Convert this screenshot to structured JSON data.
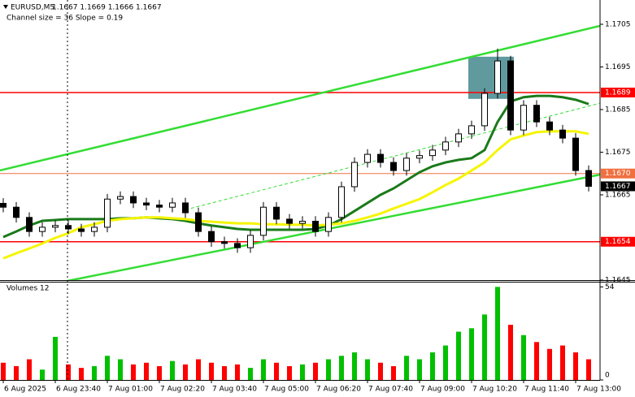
{
  "chart_data": [
    {
      "type": "candlestick",
      "title": "EURUSD,M5",
      "subtitle": "1.1667 1.1669 1.1666 1.1667",
      "annotation": "Channel size = 36 Slope = 0.19",
      "categories": [
        "6 Aug 2025",
        null,
        null,
        null,
        "6 Aug 23:40",
        null,
        null,
        null,
        "7 Aug 01:00",
        null,
        null,
        null,
        "7 Aug 02:20",
        null,
        null,
        null,
        "7 Aug 03:40",
        null,
        null,
        null,
        "7 Aug 05:00",
        null,
        null,
        null,
        "7 Aug 06:20",
        null,
        null,
        null,
        "7 Aug 07:40",
        null,
        null,
        null,
        "7 Aug 09:00",
        null,
        null,
        null,
        "7 Aug 10:20",
        null,
        null,
        null,
        "7 Aug 11:40",
        null,
        null,
        null,
        "7 Aug 13:00",
        null
      ],
      "open": [
        1.1663,
        1.16621,
        1.16597,
        1.16564,
        1.16574,
        1.16578,
        1.1657,
        1.16564,
        1.16574,
        1.1664,
        1.16646,
        1.16631,
        1.16626,
        1.16621,
        1.16631,
        1.16608,
        1.16564,
        1.1654,
        1.16536,
        1.16526,
        1.16555,
        1.16621,
        1.16593,
        1.16583,
        1.16588,
        1.16564,
        1.16597,
        1.16669,
        1.16726,
        1.16745,
        1.16726,
        1.16707,
        1.16736,
        1.16742,
        1.16755,
        1.16774,
        1.16793,
        1.16812,
        1.16888,
        1.16964,
        1.16802,
        1.1686,
        1.16821,
        1.16802,
        1.16783,
        1.16707
      ],
      "high": [
        1.16642,
        1.16633,
        1.16609,
        1.16586,
        1.1659,
        1.1659,
        1.16582,
        1.16586,
        1.16652,
        1.16658,
        1.16658,
        1.16643,
        1.16638,
        1.16643,
        1.16643,
        1.1662,
        1.16576,
        1.16552,
        1.16548,
        1.16567,
        1.16633,
        1.16633,
        1.16605,
        1.166,
        1.166,
        1.16609,
        1.16681,
        1.16738,
        1.16757,
        1.16757,
        1.16738,
        1.16748,
        1.16754,
        1.16767,
        1.16786,
        1.16805,
        1.16824,
        1.169,
        1.16993,
        1.16976,
        1.16872,
        1.16872,
        1.16833,
        1.16814,
        1.16795,
        1.16719
      ],
      "low": [
        1.16609,
        1.16585,
        1.16552,
        1.16552,
        1.16562,
        1.16558,
        1.16552,
        1.16552,
        1.16562,
        1.16628,
        1.16619,
        1.16614,
        1.16609,
        1.16609,
        1.16596,
        1.16552,
        1.16528,
        1.16524,
        1.16514,
        1.16514,
        1.16543,
        1.16581,
        1.16571,
        1.16571,
        1.16552,
        1.16552,
        1.16585,
        1.16657,
        1.16714,
        1.16714,
        1.16695,
        1.16695,
        1.16724,
        1.1673,
        1.16743,
        1.16762,
        1.16781,
        1.168,
        1.16876,
        1.1679,
        1.1679,
        1.16809,
        1.1679,
        1.16771,
        1.16695,
        1.16658
      ],
      "close": [
        1.16621,
        1.16597,
        1.16564,
        1.16574,
        1.16578,
        1.1657,
        1.16564,
        1.16574,
        1.1664,
        1.16646,
        1.16631,
        1.16626,
        1.16621,
        1.16631,
        1.16608,
        1.16564,
        1.1654,
        1.16536,
        1.16526,
        1.16555,
        1.16621,
        1.16593,
        1.16583,
        1.16588,
        1.16564,
        1.16597,
        1.16669,
        1.16726,
        1.16745,
        1.16726,
        1.16707,
        1.16736,
        1.16742,
        1.16755,
        1.16774,
        1.16793,
        1.16812,
        1.16888,
        1.16964,
        1.16802,
        1.1686,
        1.16821,
        1.16802,
        1.16783,
        1.16707,
        1.1667
      ],
      "color": "#000000",
      "lines": [
        {
          "color": "#1a7a1a",
          "values": [
            1.16551,
            1.16564,
            1.16578,
            1.16589,
            1.16591,
            1.16593,
            1.16593,
            1.16593,
            1.16593,
            1.16595,
            1.16595,
            1.16597,
            1.16595,
            1.16593,
            1.16589,
            1.16583,
            1.16578,
            1.16574,
            1.1657,
            1.16568,
            1.16568,
            1.16568,
            1.16568,
            1.16568,
            1.1657,
            1.16578,
            1.16593,
            1.16612,
            1.16631,
            1.1665,
            1.16665,
            1.16684,
            1.16703,
            1.16717,
            1.16726,
            1.16732,
            1.16736,
            1.16755,
            1.16821,
            1.16869,
            1.16879,
            1.16882,
            1.16882,
            1.16879,
            1.16873,
            1.16863
          ]
        },
        {
          "color": "#f5f500",
          "values": [
            1.16501,
            1.16513,
            1.16524,
            1.16536,
            1.16549,
            1.1656,
            1.16574,
            1.16581,
            1.16589,
            1.16593,
            1.16595,
            1.16597,
            1.16597,
            1.16595,
            1.16593,
            1.16589,
            1.16587,
            1.16585,
            1.16583,
            1.16583,
            1.16581,
            1.16581,
            1.1658,
            1.1658,
            1.16578,
            1.1658,
            1.16583,
            1.16589,
            1.16597,
            1.16606,
            1.16618,
            1.16629,
            1.1664,
            1.16656,
            1.16673,
            1.16688,
            1.16707,
            1.16726,
            1.16755,
            1.1678,
            1.16789,
            1.16797,
            1.16799,
            1.16799,
            1.16799,
            1.16793
          ]
        }
      ],
      "channel_lines": [
        {
          "color": "#33dd33",
          "dashed": false,
          "x": [
            0,
            45
          ],
          "y": [
            1.16709,
            1.1704
          ]
        },
        {
          "color": "#33dd33",
          "dashed": false,
          "x": [
            0,
            45
          ],
          "y": [
            1.16418,
            1.16692
          ]
        },
        {
          "color": "#33dd33",
          "dashed": true,
          "x": [
            14,
            45
          ],
          "y": [
            1.16615,
            1.16858
          ]
        }
      ],
      "highlight": {
        "color": "#4f8f94",
        "x": [
          36,
          39
        ],
        "y": [
          1.16875,
          1.16974
        ]
      },
      "levels": [
        {
          "value": 1.1689,
          "color": "#ff0000"
        },
        {
          "value": {
            "value": 1.167,
            "label": "1.1670"
          },
          "color": "#f07040"
        },
        {
          "value": 1.1654,
          "color": "#ff0000"
        }
      ],
      "last_price": 1.1667,
      "ylim": [
        1.1645,
        1.17107
      ],
      "yticks": [
        1.1705,
        1.1695,
        1.1685,
        1.1675,
        1.1665,
        1.1645
      ]
    },
    {
      "type": "volume",
      "title": "Volumes 12",
      "values": [
        10,
        8,
        12,
        6,
        25,
        9,
        7,
        8,
        14,
        12,
        9,
        10,
        8,
        11,
        9,
        12,
        10,
        8,
        9,
        7,
        12,
        10,
        8,
        9,
        10,
        12,
        14,
        16,
        12,
        10,
        8,
        14,
        12,
        16,
        20,
        28,
        30,
        38,
        54,
        32,
        26,
        22,
        18,
        20,
        16,
        12
      ],
      "up_color": "#00c000",
      "down_color": "#ff0000",
      "ylim": [
        0,
        57
      ],
      "yticks": [
        54,
        0
      ]
    }
  ]
}
